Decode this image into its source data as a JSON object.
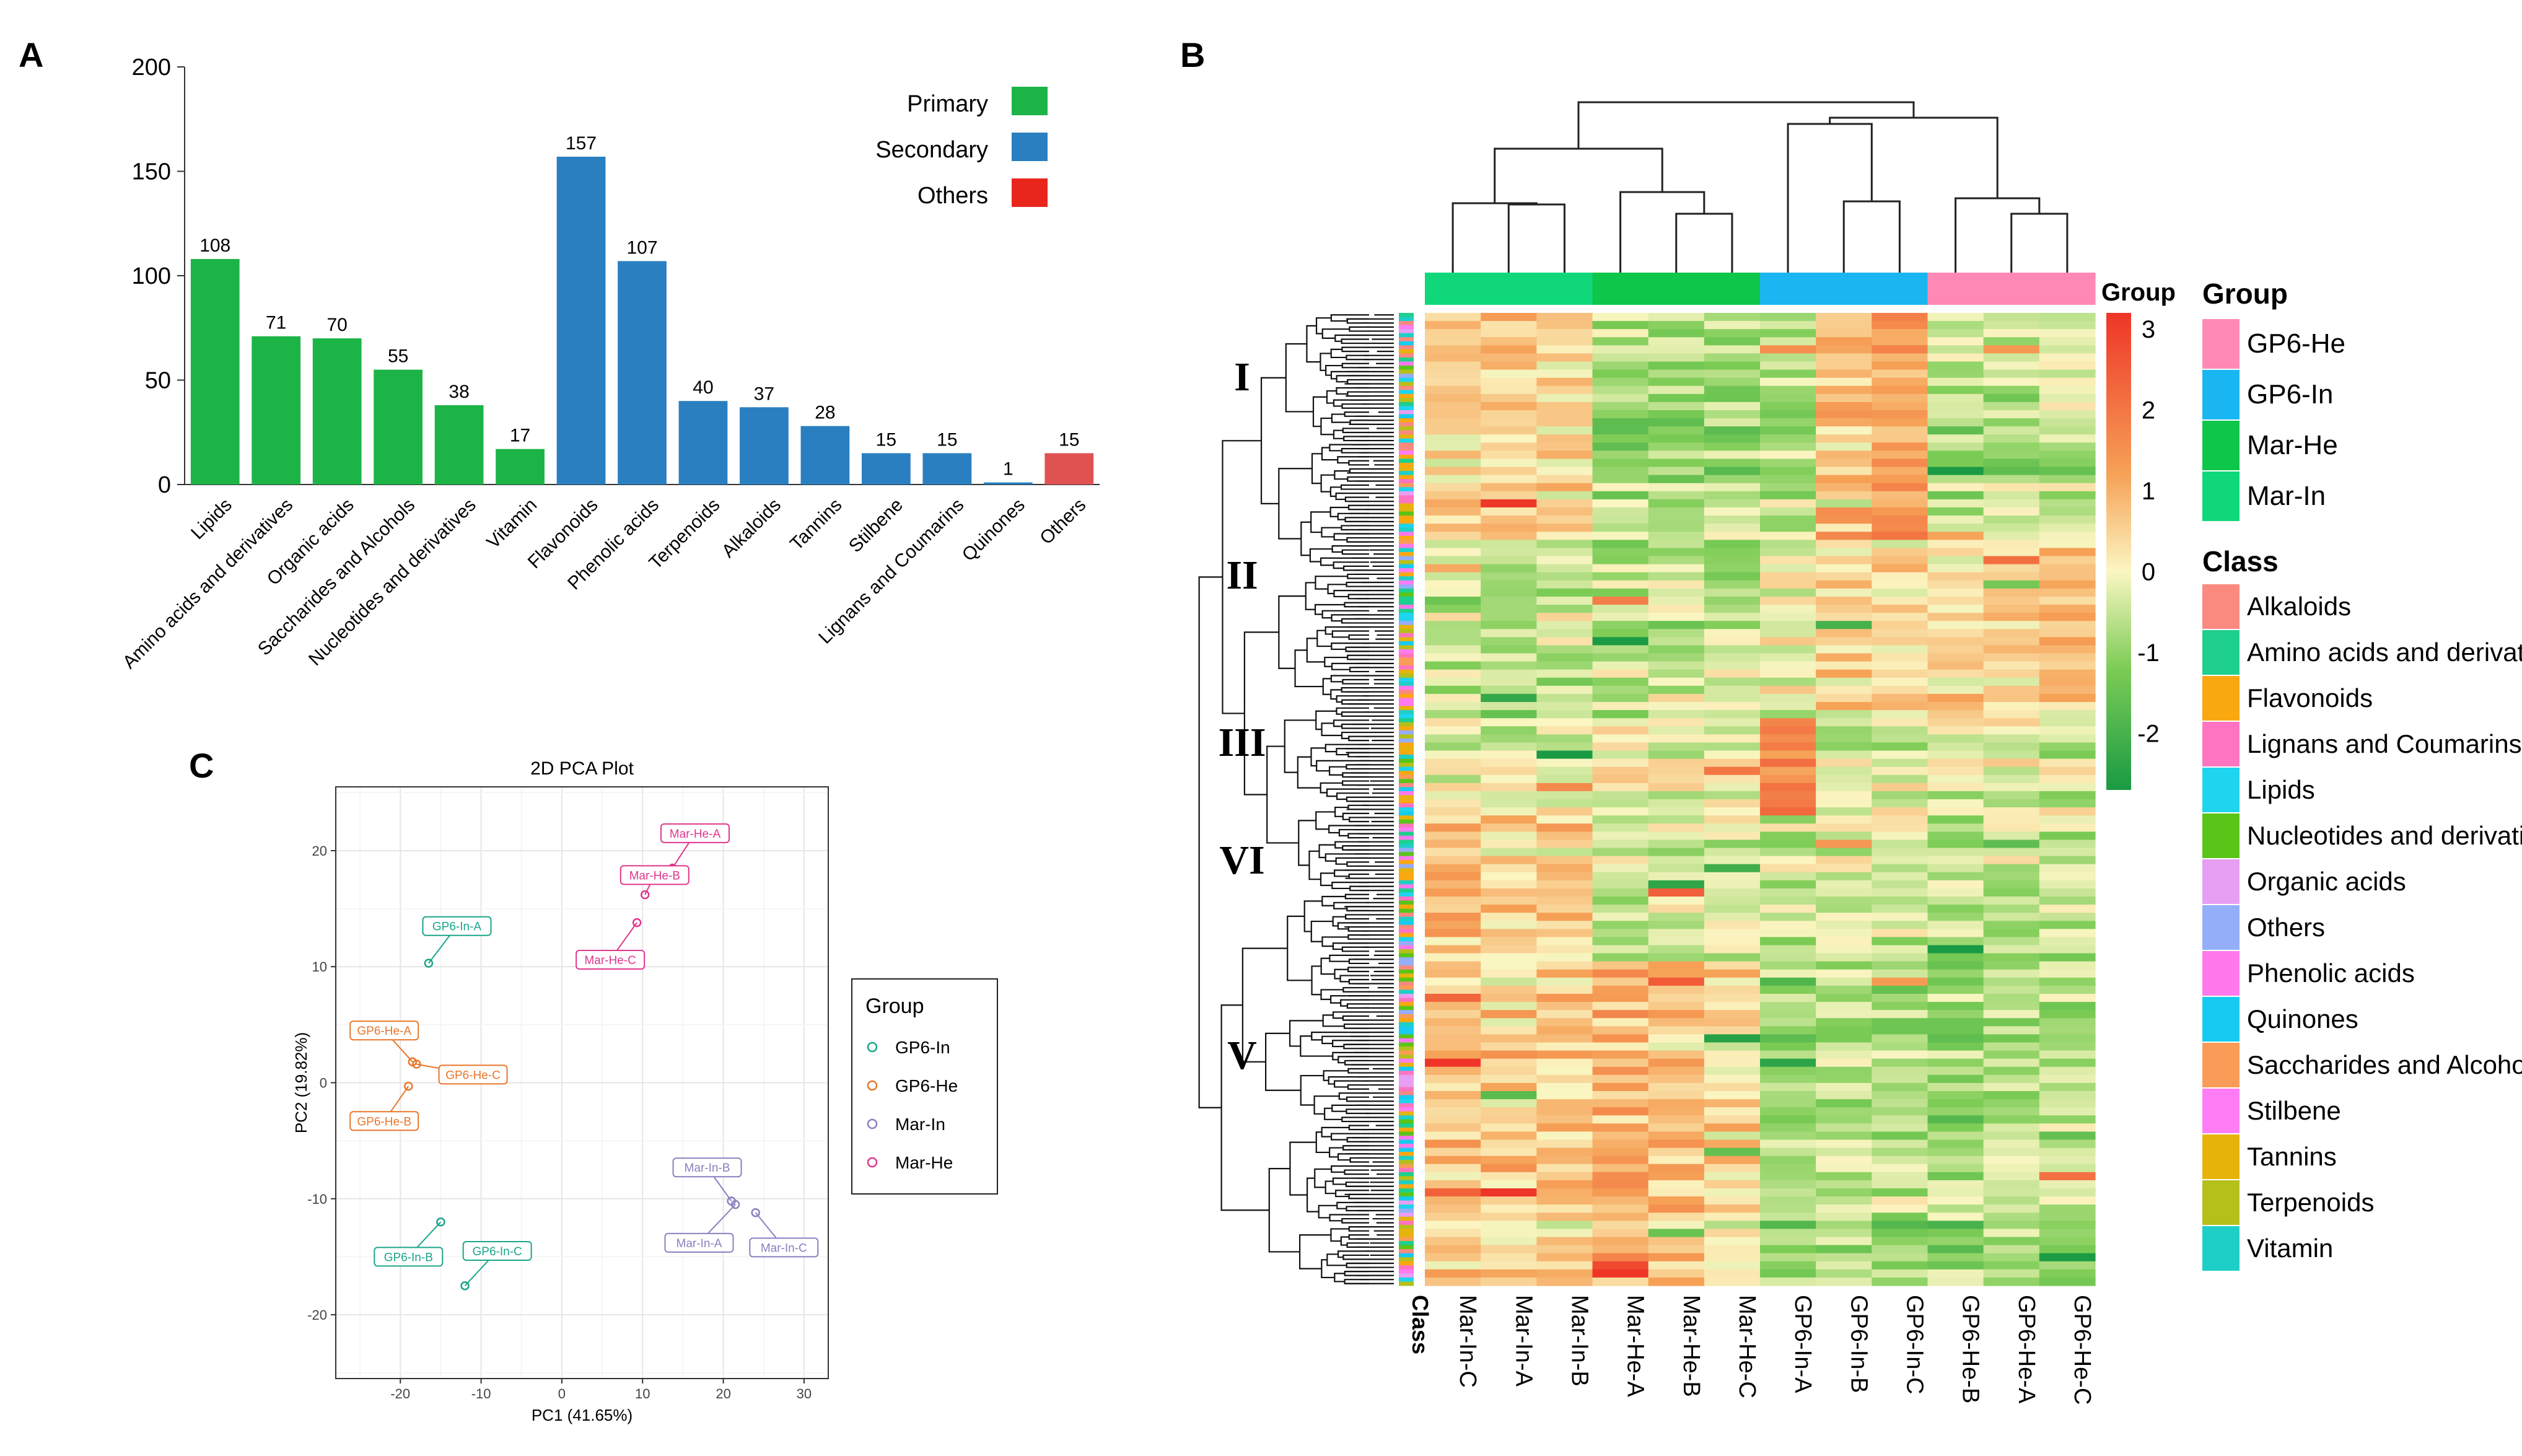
{
  "panels": {
    "a": "A",
    "b": "B",
    "c": "C"
  },
  "chart_data": [
    {
      "type": "bar",
      "panel": "A",
      "categories": [
        "Lipids",
        "Amino acids and derivatives",
        "Organic acids",
        "Saccharides and Alcohols",
        "Nucleotides and derivatives",
        "Vitamin",
        "Flavonoids",
        "Phenolic acids",
        "Terpenoids",
        "Alkaloids",
        "Tannins",
        "Stilbene",
        "Lignans and Coumarins",
        "Quinones",
        "Others"
      ],
      "values": [
        108,
        71,
        70,
        55,
        38,
        17,
        157,
        107,
        40,
        37,
        28,
        15,
        15,
        1,
        15
      ],
      "groups": [
        "Primary",
        "Primary",
        "Primary",
        "Primary",
        "Primary",
        "Primary",
        "Secondary",
        "Secondary",
        "Secondary",
        "Secondary",
        "Secondary",
        "Secondary",
        "Secondary",
        "Secondary",
        "Others"
      ],
      "legend": [
        {
          "label": "Primary",
          "color": "#1db447"
        },
        {
          "label": "Secondary",
          "color": "#2a7fc0"
        },
        {
          "label": "Others",
          "color": "#e8261c"
        }
      ],
      "bar_colors": {
        "Primary": "#1db447",
        "Secondary": "#2a7fc0",
        "Others": "#e05252"
      },
      "yticks": [
        0,
        50,
        100,
        150,
        200
      ],
      "ylim": [
        0,
        200
      ],
      "title": "",
      "xlabel": "",
      "ylabel": ""
    },
    {
      "type": "scatter",
      "panel": "C",
      "title": "2D PCA Plot",
      "xlabel": "PC1 (41.65%)",
      "ylabel": "PC2 (19.82%)",
      "xlim": [
        -28,
        33
      ],
      "ylim": [
        -25.5,
        25.5
      ],
      "xticks": [
        -20,
        -10,
        0,
        10,
        20,
        30
      ],
      "yticks": [
        -20,
        -10,
        0,
        10,
        20
      ],
      "grid": true,
      "legend_title": "Group",
      "groups": [
        {
          "name": "GP6-In",
          "color": "#1aa58a"
        },
        {
          "name": "GP6-He",
          "color": "#e8762b"
        },
        {
          "name": "Mar-In",
          "color": "#8a80bf"
        },
        {
          "name": "Mar-He",
          "color": "#e0368c"
        }
      ],
      "points": [
        {
          "label": "GP6-In-A",
          "group": "GP6-In",
          "x": -16.5,
          "y": 10.3,
          "lx": -13,
          "ly": 13.5
        },
        {
          "label": "GP6-In-B",
          "group": "GP6-In",
          "x": -15,
          "y": -12,
          "lx": -19,
          "ly": -15
        },
        {
          "label": "GP6-In-C",
          "group": "GP6-In",
          "x": -12,
          "y": -17.5,
          "lx": -8,
          "ly": -14.5
        },
        {
          "label": "GP6-He-A",
          "group": "GP6-He",
          "x": -18.5,
          "y": 1.8,
          "lx": -22,
          "ly": 4.5
        },
        {
          "label": "GP6-He-B",
          "group": "GP6-He",
          "x": -19,
          "y": -0.3,
          "lx": -22,
          "ly": -3.3
        },
        {
          "label": "GP6-He-C",
          "group": "GP6-He",
          "x": -18,
          "y": 1.6,
          "lx": -11,
          "ly": 0.7
        },
        {
          "label": "Mar-In-A",
          "group": "Mar-In",
          "x": 21.5,
          "y": -10.5,
          "lx": 17,
          "ly": -13.8
        },
        {
          "label": "Mar-In-B",
          "group": "Mar-In",
          "x": 21,
          "y": -10.2,
          "lx": 18,
          "ly": -7.3
        },
        {
          "label": "Mar-In-C",
          "group": "Mar-In",
          "x": 24,
          "y": -11.2,
          "lx": 27.5,
          "ly": -14.2
        },
        {
          "label": "Mar-He-A",
          "group": "Mar-He",
          "x": 13.7,
          "y": 18.5,
          "lx": 16.5,
          "ly": 21.5
        },
        {
          "label": "Mar-He-B",
          "group": "Mar-He",
          "x": 10.3,
          "y": 16.2,
          "lx": 11.5,
          "ly": 17.9
        },
        {
          "label": "Mar-He-C",
          "group": "Mar-He",
          "x": 9.3,
          "y": 13.8,
          "lx": 6,
          "ly": 10.6
        }
      ]
    },
    {
      "type": "heatmap",
      "panel": "B",
      "columns": [
        "Mar-In-C",
        "Mar-In-A",
        "Mar-In-B",
        "Mar-He-A",
        "Mar-He-B",
        "Mar-He-C",
        "GP6-In-A",
        "GP6-In-B",
        "GP6-In-C",
        "GP6-He-B",
        "GP6-He-A",
        "GP6-He-C"
      ],
      "column_groups": [
        "Mar-In",
        "Mar-In",
        "Mar-In",
        "Mar-He",
        "Mar-He",
        "Mar-He",
        "GP6-In",
        "GP6-In",
        "GP6-In",
        "GP6-He",
        "GP6-He",
        "GP6-He"
      ],
      "row_annotation_label": "Class",
      "cluster_labels": [
        "I",
        "II",
        "III",
        "VI",
        "V"
      ],
      "colorbar_title": "Group",
      "colorbar_ticks": [
        3,
        2,
        1,
        0,
        -1,
        -2
      ],
      "colorbar_range": [
        -2.7,
        3.2
      ],
      "colorbar_colors": [
        "#1a9a44",
        "#7ccc55",
        "#fbf6c2",
        "#f6a257",
        "#ee3527"
      ],
      "group_legend_title": "Group",
      "group_legend": [
        {
          "label": "GP6-He",
          "color": "#ff89b4"
        },
        {
          "label": "GP6-In",
          "color": "#1ab6f2"
        },
        {
          "label": "Mar-He",
          "color": "#0dc64a"
        },
        {
          "label": "Mar-In",
          "color": "#10d87a"
        }
      ],
      "class_legend_title": "Class",
      "class_legend": [
        {
          "label": "Alkaloids",
          "color": "#fa8a80"
        },
        {
          "label": "Amino acids and derivatives",
          "color": "#1ecf8e"
        },
        {
          "label": "Flavonoids",
          "color": "#f9a810"
        },
        {
          "label": "Lignans and Coumarins",
          "color": "#ff74c1"
        },
        {
          "label": "Lipids",
          "color": "#1ed4ef"
        },
        {
          "label": "Nucleotides and derivatives",
          "color": "#5ac419"
        },
        {
          "label": "Organic acids",
          "color": "#e69ff2"
        },
        {
          "label": "Others",
          "color": "#94aef9"
        },
        {
          "label": "Phenolic acids",
          "color": "#ff79ec"
        },
        {
          "label": "Quinones",
          "color": "#17caf0"
        },
        {
          "label": "Saccharides and Alcohols",
          "color": "#fa9c57"
        },
        {
          "label": "Stilbene",
          "color": "#ff7cf4"
        },
        {
          "label": "Tannins",
          "color": "#e6b30b"
        },
        {
          "label": "Terpenoids",
          "color": "#b5c01a"
        },
        {
          "label": "Vitamin",
          "color": "#1ecfc8"
        }
      ]
    }
  ]
}
